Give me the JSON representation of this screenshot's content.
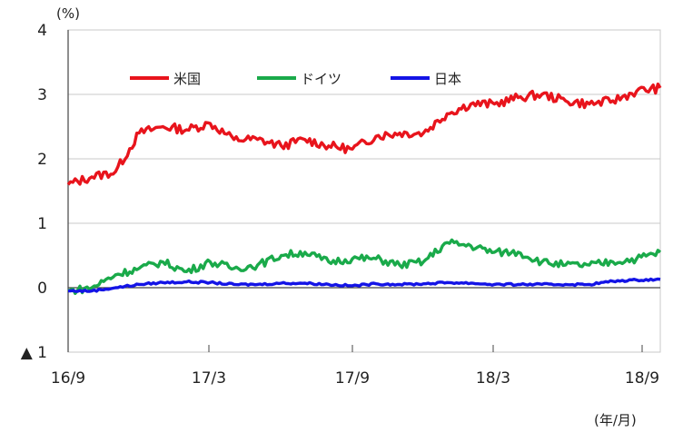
{
  "chart_data": {
    "type": "line",
    "title": "",
    "y_unit": "(%)",
    "x_unit": "(年/月)",
    "ylim": [
      -1,
      4
    ],
    "y_ticks": [
      {
        "value": 4,
        "label": "4"
      },
      {
        "value": 3,
        "label": "3"
      },
      {
        "value": 2,
        "label": "2"
      },
      {
        "value": 1,
        "label": "1"
      },
      {
        "value": 0,
        "label": "0"
      },
      {
        "value": -1,
        "label": "▲ 1"
      }
    ],
    "x_ticks": [
      "16/9",
      "17/3",
      "17/9",
      "18/3",
      "18/9"
    ],
    "legend_position": "top",
    "grid": "horizontal",
    "series": [
      {
        "name": "米国",
        "color": "#e8141c",
        "x": [
          "16/9",
          "16/10",
          "16/11",
          "16/12",
          "17/1",
          "17/2",
          "17/3",
          "17/4",
          "17/5",
          "17/6",
          "17/7",
          "17/8",
          "17/9",
          "17/10",
          "17/11",
          "17/12",
          "18/1",
          "18/2",
          "18/3",
          "18/4",
          "18/5",
          "18/6",
          "18/7",
          "18/8",
          "18/9",
          "18/10"
        ],
        "values": [
          1.6,
          1.72,
          1.8,
          2.4,
          2.5,
          2.45,
          2.55,
          2.3,
          2.3,
          2.2,
          2.3,
          2.2,
          2.15,
          2.35,
          2.4,
          2.4,
          2.7,
          2.85,
          2.85,
          2.95,
          3.0,
          2.9,
          2.85,
          2.9,
          3.05,
          3.1
        ]
      },
      {
        "name": "ドイツ",
        "color": "#1aaa4a",
        "x": [
          "16/9",
          "16/10",
          "16/11",
          "16/12",
          "17/1",
          "17/2",
          "17/3",
          "17/4",
          "17/5",
          "17/6",
          "17/7",
          "17/8",
          "17/9",
          "17/10",
          "17/11",
          "17/12",
          "18/1",
          "18/2",
          "18/3",
          "18/4",
          "18/5",
          "18/6",
          "18/7",
          "18/8",
          "18/9",
          "18/10"
        ],
        "values": [
          -0.05,
          0.0,
          0.2,
          0.3,
          0.4,
          0.25,
          0.4,
          0.3,
          0.35,
          0.5,
          0.55,
          0.4,
          0.45,
          0.45,
          0.35,
          0.4,
          0.7,
          0.65,
          0.55,
          0.55,
          0.4,
          0.35,
          0.35,
          0.4,
          0.45,
          0.55
        ]
      },
      {
        "name": "日本",
        "color": "#1414e6",
        "x": [
          "16/9",
          "16/10",
          "16/11",
          "16/12",
          "17/1",
          "17/2",
          "17/3",
          "17/4",
          "17/5",
          "17/6",
          "17/7",
          "17/8",
          "17/9",
          "17/10",
          "17/11",
          "17/12",
          "18/1",
          "18/2",
          "18/3",
          "18/4",
          "18/5",
          "18/6",
          "18/7",
          "18/8",
          "18/9",
          "18/10"
        ],
        "values": [
          -0.05,
          -0.05,
          0.0,
          0.05,
          0.08,
          0.09,
          0.08,
          0.05,
          0.05,
          0.07,
          0.07,
          0.05,
          0.03,
          0.06,
          0.05,
          0.06,
          0.08,
          0.07,
          0.05,
          0.05,
          0.05,
          0.05,
          0.05,
          0.1,
          0.12,
          0.13
        ]
      }
    ]
  }
}
